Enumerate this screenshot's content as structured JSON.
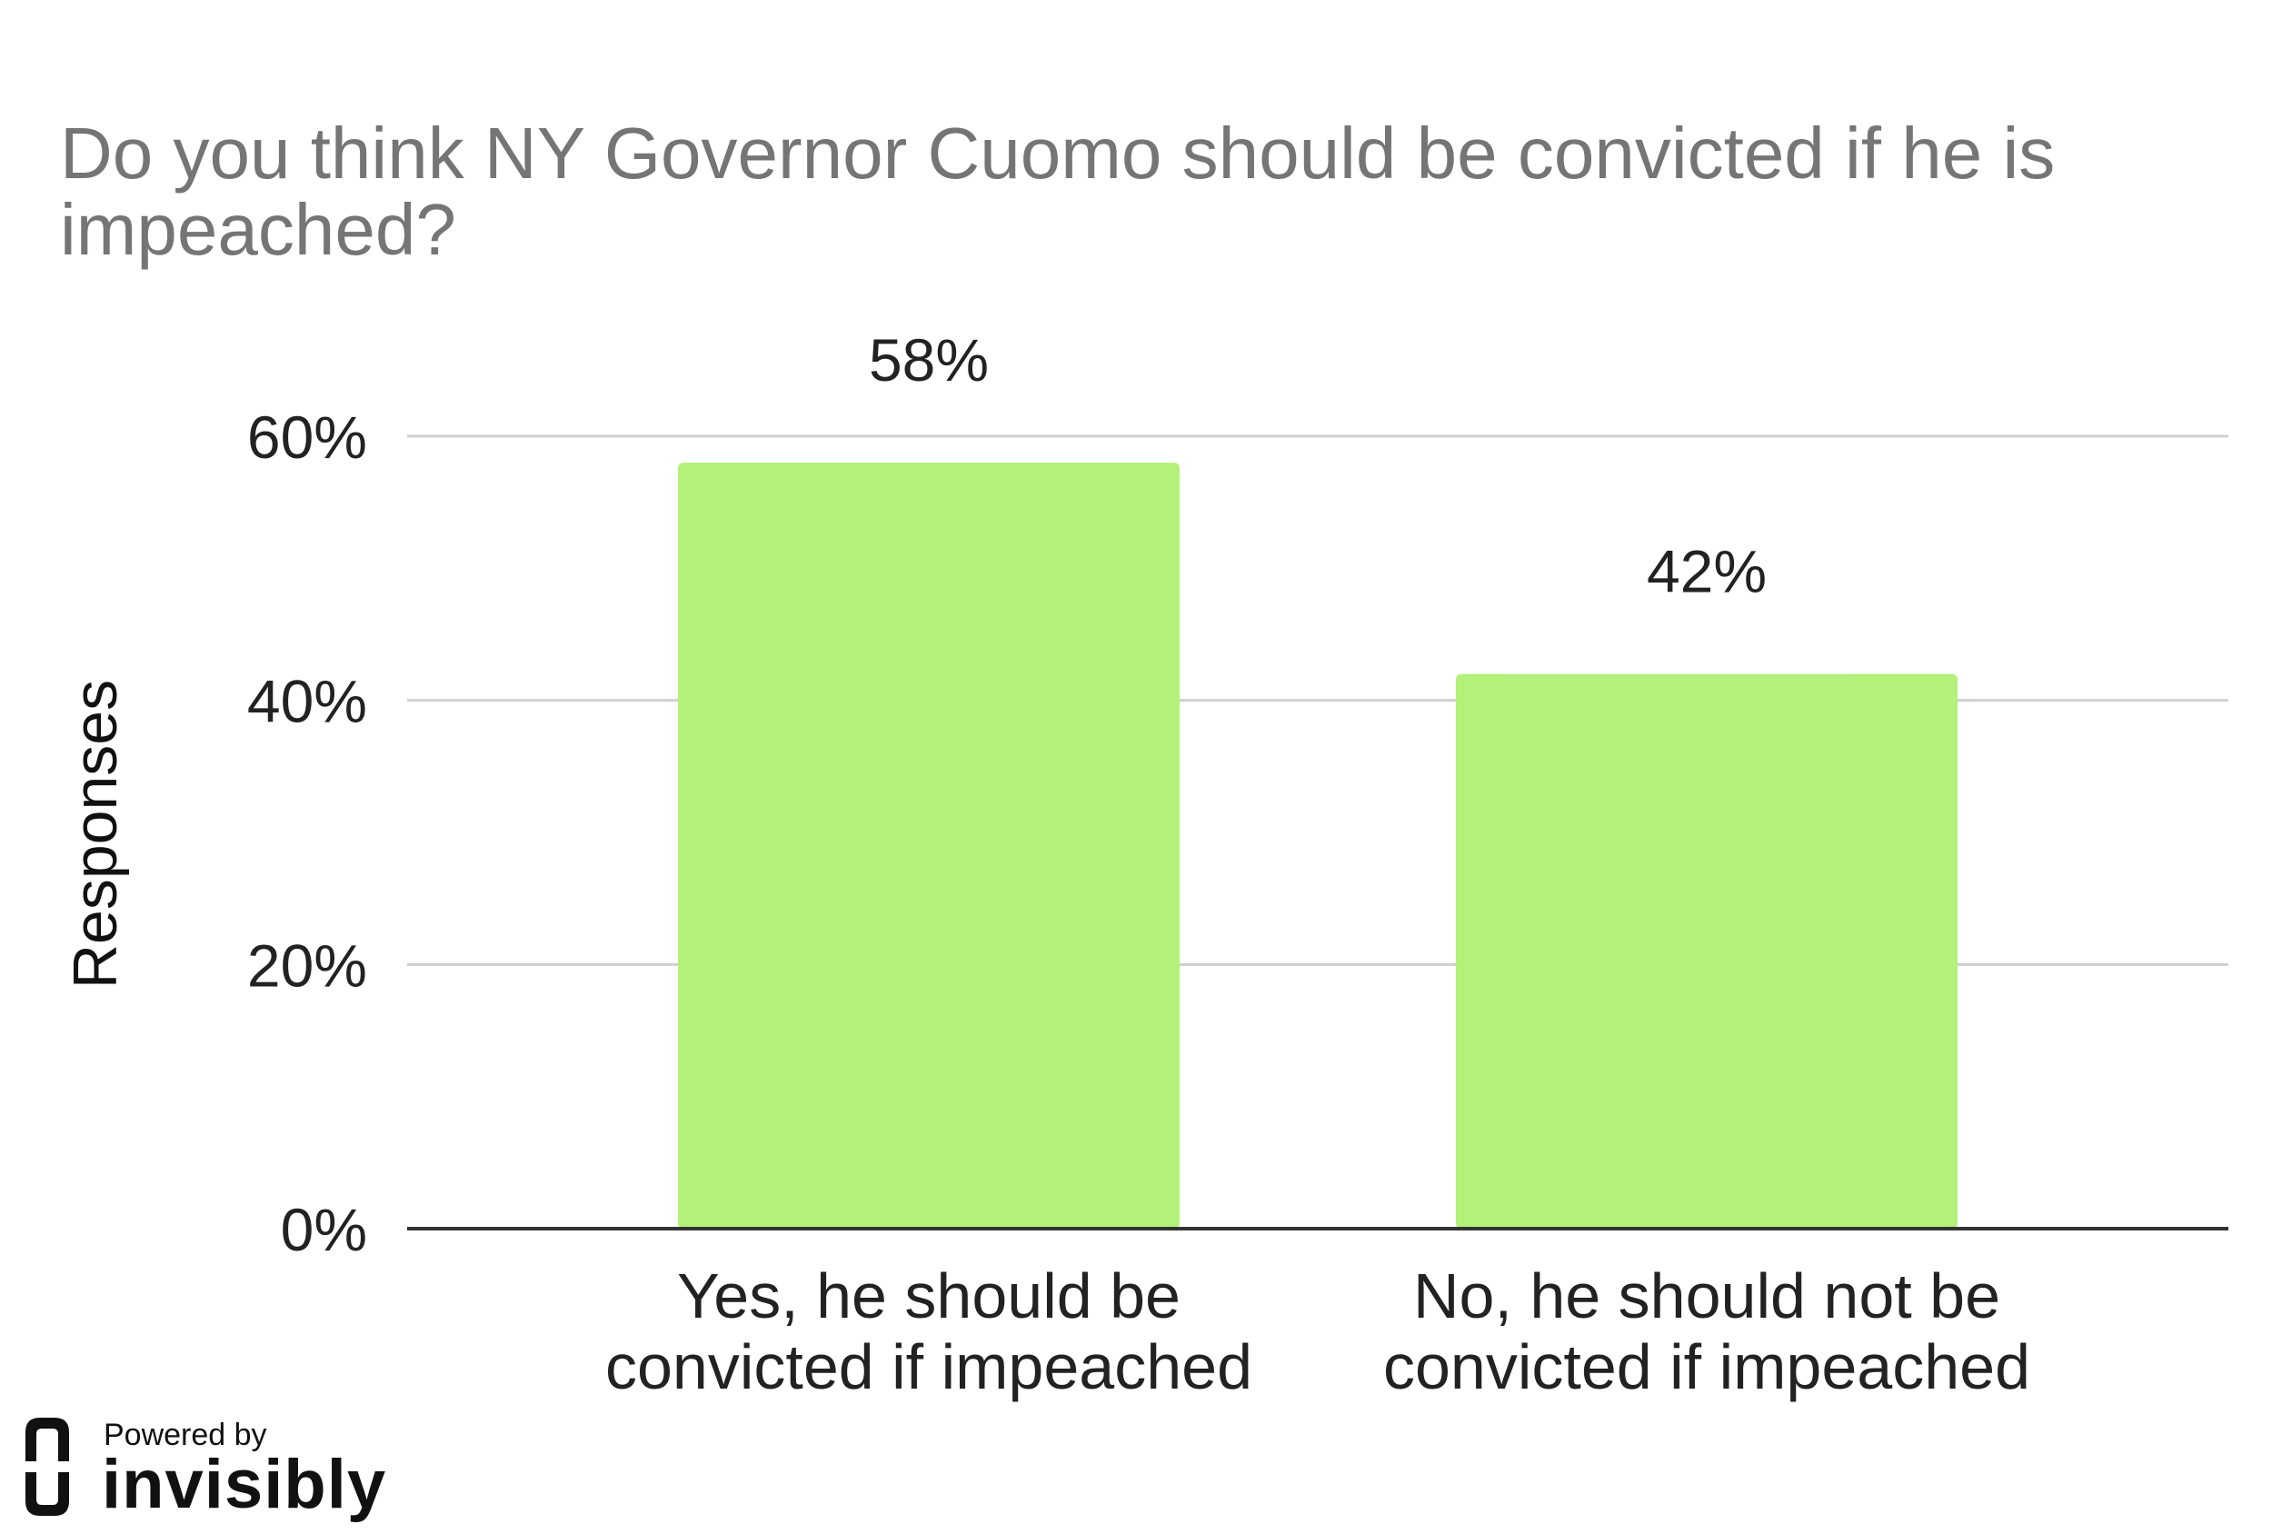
{
  "chart_data": {
    "type": "bar",
    "title": "Do you think NY Governor Cuomo should be convicted if he is impeached?",
    "title_lines": [
      "Do you think NY Governor Cuomo should be convicted if he is",
      "impeached?"
    ],
    "ylabel": "Responses",
    "xlabel": "",
    "categories": [
      "Yes, he should be convicted if impeached",
      "No, he should not be convicted if impeached"
    ],
    "category_lines": [
      [
        "Yes, he should be",
        "convicted if impeached"
      ],
      [
        "No, he should not be",
        "convicted if impeached"
      ]
    ],
    "values": [
      58,
      42
    ],
    "data_labels": [
      "58%",
      "42%"
    ],
    "ylim": [
      0,
      60
    ],
    "yticks": [
      0,
      20,
      40,
      60
    ],
    "ytick_labels": [
      "0%",
      "20%",
      "40%",
      "60%"
    ],
    "grid": true,
    "bar_color": "#b3f17a",
    "gridline_color": "#d0d0d0",
    "axis_color": "#333333"
  },
  "branding": {
    "powered_by": "Powered by",
    "name": "invisibly"
  }
}
